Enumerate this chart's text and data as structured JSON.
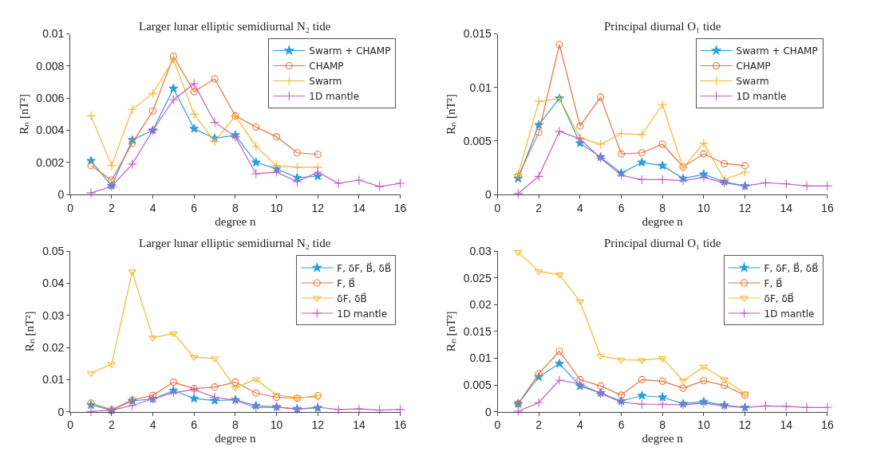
{
  "chart_data": [
    {
      "type": "line",
      "title": "Larger lunar elliptic semidiurnal N₂ tide",
      "xlabel": "degree n",
      "ylabel": "Rₙ [nT²]",
      "xlim": [
        0,
        16
      ],
      "xticks": [
        0,
        2,
        4,
        6,
        8,
        10,
        12,
        14,
        16
      ],
      "ylim": [
        0,
        0.01
      ],
      "yticks": [
        0,
        0.002,
        0.004,
        0.006,
        0.008,
        0.01
      ],
      "legend": "top right",
      "line_style": "solid",
      "x": [
        1,
        2,
        3,
        4,
        5,
        6,
        7,
        8,
        9,
        10,
        11,
        12
      ],
      "series": [
        {
          "name": "Swarm + CHAMP",
          "color": "#2b9fd8",
          "marker": "star",
          "values": [
            0.0021,
            0.00055,
            0.0034,
            0.004,
            0.0066,
            0.0041,
            0.0035,
            0.0037,
            0.002,
            0.0016,
            0.00105,
            0.00115
          ]
        },
        {
          "name": "CHAMP",
          "color": "#e8703a",
          "marker": "circle",
          "values": [
            0.0018,
            0.0009,
            0.0032,
            0.0052,
            0.0086,
            0.0064,
            0.0072,
            0.0049,
            0.0042,
            0.0036,
            0.0026,
            0.0025
          ]
        },
        {
          "name": "Swarm",
          "color": "#f2b82e",
          "marker": "cross",
          "values": [
            0.0049,
            0.0018,
            0.0053,
            0.0063,
            0.0084,
            0.005,
            0.0033,
            0.0049,
            0.003,
            0.0018,
            0.0017,
            0.0017
          ]
        },
        {
          "name": "1D mantle",
          "color": "#c25bc6",
          "marker": "cross",
          "x": [
            1,
            2,
            3,
            4,
            5,
            6,
            7,
            8,
            9,
            10,
            11,
            12,
            13,
            14,
            15,
            16
          ],
          "values": [
            0.0001,
            0.0005,
            0.0019,
            0.004,
            0.0059,
            0.0069,
            0.0045,
            0.0036,
            0.0013,
            0.0014,
            0.0008,
            0.0014,
            0.0007,
            0.0009,
            0.0005,
            0.0007
          ]
        }
      ]
    },
    {
      "type": "line",
      "title": "Principal diurnal O₁ tide",
      "xlabel": "degree n",
      "ylabel": "Rₙ [nT²]",
      "xlim": [
        0,
        16
      ],
      "xticks": [
        0,
        2,
        4,
        6,
        8,
        10,
        12,
        14,
        16
      ],
      "ylim": [
        0,
        0.015
      ],
      "yticks": [
        0,
        0.005,
        0.01,
        0.015
      ],
      "legend": "top right",
      "line_style": "solid",
      "x": [
        1,
        2,
        3,
        4,
        5,
        6,
        7,
        8,
        9,
        10,
        11,
        12
      ],
      "series": [
        {
          "name": "Swarm + CHAMP",
          "color": "#2b9fd8",
          "marker": "star",
          "values": [
            0.0015,
            0.0065,
            0.009,
            0.0048,
            0.0035,
            0.002,
            0.003,
            0.0027,
            0.0015,
            0.0019,
            0.0012,
            0.0008
          ]
        },
        {
          "name": "CHAMP",
          "color": "#e8703a",
          "marker": "circle",
          "values": [
            0.0017,
            0.0058,
            0.014,
            0.0064,
            0.0091,
            0.0038,
            0.0039,
            0.0047,
            0.0026,
            0.0038,
            0.0029,
            0.0027
          ]
        },
        {
          "name": "Swarm",
          "color": "#f2b82e",
          "marker": "cross",
          "values": [
            0.0019,
            0.0087,
            0.009,
            0.0053,
            0.0047,
            0.0057,
            0.0056,
            0.0084,
            0.0025,
            0.0048,
            0.0014,
            0.0021
          ]
        },
        {
          "name": "1D mantle",
          "color": "#c25bc6",
          "marker": "cross",
          "x": [
            1,
            2,
            3,
            4,
            5,
            6,
            7,
            8,
            9,
            10,
            11,
            12,
            13,
            14,
            15,
            16
          ],
          "values": [
            0.0001,
            0.0017,
            0.0059,
            0.0052,
            0.0034,
            0.0018,
            0.0014,
            0.0014,
            0.0013,
            0.0016,
            0.0011,
            0.0008,
            0.0011,
            0.001,
            0.0008,
            0.0008
          ]
        }
      ]
    },
    {
      "type": "line",
      "title": "Larger lunar elliptic semidiurnal N₂ tide",
      "xlabel": "degree n",
      "ylabel": "Rₙ [nT²]",
      "xlim": [
        0,
        16
      ],
      "xticks": [
        0,
        2,
        4,
        6,
        8,
        10,
        12,
        14,
        16
      ],
      "ylim": [
        0,
        0.05
      ],
      "yticks": [
        0,
        0.01,
        0.02,
        0.03,
        0.04,
        0.05
      ],
      "legend": "top right",
      "line_style": "solid",
      "x": [
        1,
        2,
        3,
        4,
        5,
        6,
        7,
        8,
        9,
        10,
        11,
        12
      ],
      "series": [
        {
          "name": "F, δF, B⃗, δB⃗",
          "color": "#2b9fd8",
          "marker": "star",
          "values": [
            0.0021,
            0.0005,
            0.0034,
            0.004,
            0.0066,
            0.0041,
            0.0035,
            0.0037,
            0.0019,
            0.0015,
            0.0009,
            0.0012
          ]
        },
        {
          "name": "F, B⃗",
          "color": "#e8703a",
          "marker": "circle",
          "values": [
            0.0027,
            0.0006,
            0.0037,
            0.0051,
            0.0092,
            0.0072,
            0.0077,
            0.0092,
            0.0058,
            0.0045,
            0.0042,
            0.005
          ]
        },
        {
          "name": "δF, δB⃗",
          "color": "#f2b82e",
          "marker": "triangle",
          "values": [
            0.012,
            0.0148,
            0.0436,
            0.023,
            0.0243,
            0.017,
            0.0166,
            0.0075,
            0.0101,
            0.0052,
            0.0044,
            0.0046
          ]
        },
        {
          "name": "1D mantle",
          "color": "#c25bc6",
          "marker": "cross",
          "x": [
            1,
            2,
            3,
            4,
            5,
            6,
            7,
            8,
            9,
            10,
            11,
            12,
            13,
            14,
            15,
            16
          ],
          "values": [
            0.0001,
            0.0005,
            0.0019,
            0.004,
            0.0059,
            0.0069,
            0.0045,
            0.0036,
            0.0013,
            0.0014,
            0.0008,
            0.0014,
            0.0007,
            0.0009,
            0.0005,
            0.0007
          ]
        }
      ]
    },
    {
      "type": "line",
      "title": "Principal diurnal O₁ tide",
      "xlabel": "degree n",
      "ylabel": "Rₙ [nT²]",
      "xlim": [
        0,
        16
      ],
      "xticks": [
        0,
        2,
        4,
        6,
        8,
        10,
        12,
        14,
        16
      ],
      "ylim": [
        0,
        0.03
      ],
      "yticks": [
        0,
        0.005,
        0.01,
        0.015,
        0.02,
        0.025,
        0.03
      ],
      "legend": "top right",
      "line_style": "solid",
      "x": [
        1,
        2,
        3,
        4,
        5,
        6,
        7,
        8,
        9,
        10,
        11,
        12
      ],
      "series": [
        {
          "name": "F, δF, B⃗, δB⃗",
          "color": "#2b9fd8",
          "marker": "star",
          "values": [
            0.0015,
            0.0065,
            0.009,
            0.0048,
            0.0035,
            0.002,
            0.003,
            0.0027,
            0.0015,
            0.0019,
            0.0012,
            0.0008
          ]
        },
        {
          "name": "F, B⃗",
          "color": "#e8703a",
          "marker": "circle",
          "values": [
            0.0015,
            0.0071,
            0.0113,
            0.006,
            0.0048,
            0.0031,
            0.006,
            0.0057,
            0.0044,
            0.0058,
            0.0049,
            0.0031
          ]
        },
        {
          "name": "δF, δB⃗",
          "color": "#f2b82e",
          "marker": "triangle",
          "values": [
            0.0298,
            0.0262,
            0.0256,
            0.0206,
            0.0104,
            0.0097,
            0.0096,
            0.01,
            0.0058,
            0.0084,
            0.006,
            0.0034
          ]
        },
        {
          "name": "1D mantle",
          "color": "#c25bc6",
          "marker": "cross",
          "x": [
            1,
            2,
            3,
            4,
            5,
            6,
            7,
            8,
            9,
            10,
            11,
            12,
            13,
            14,
            15,
            16
          ],
          "values": [
            0.0001,
            0.0017,
            0.0059,
            0.0052,
            0.0034,
            0.0018,
            0.0014,
            0.0014,
            0.0013,
            0.0016,
            0.0011,
            0.0008,
            0.0011,
            0.001,
            0.0008,
            0.0008
          ]
        }
      ]
    }
  ]
}
